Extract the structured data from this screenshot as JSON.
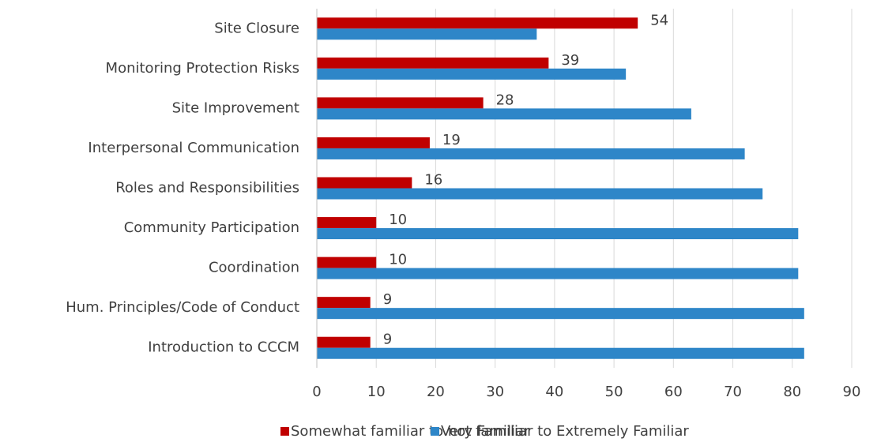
{
  "chart_data": {
    "type": "bar",
    "orientation": "horizontal",
    "categories": [
      "Site Closure",
      "Monitoring Protection Risks",
      "Site Improvement",
      "Interpersonal Communication",
      "Roles and Responsibilities",
      "Community Participation",
      "Coordination",
      "Hum. Principles/Code of Conduct",
      "Introduction to CCCM"
    ],
    "series": [
      {
        "name": "Somewhat familiar to not familiar",
        "color": "#c00000",
        "values": [
          54,
          39,
          28,
          19,
          16,
          10,
          10,
          9,
          9
        ],
        "show_values": true
      },
      {
        "name": "Very Familiar to Extremely Familiar",
        "color": "#2e86c8",
        "values": [
          37,
          52,
          63,
          72,
          75,
          81,
          81,
          82,
          82
        ],
        "show_values": false
      }
    ],
    "xlim": [
      0,
      90
    ],
    "xticks": [
      0,
      10,
      20,
      30,
      40,
      50,
      60,
      70,
      80,
      90
    ],
    "grid": true,
    "legend": "bottom"
  }
}
